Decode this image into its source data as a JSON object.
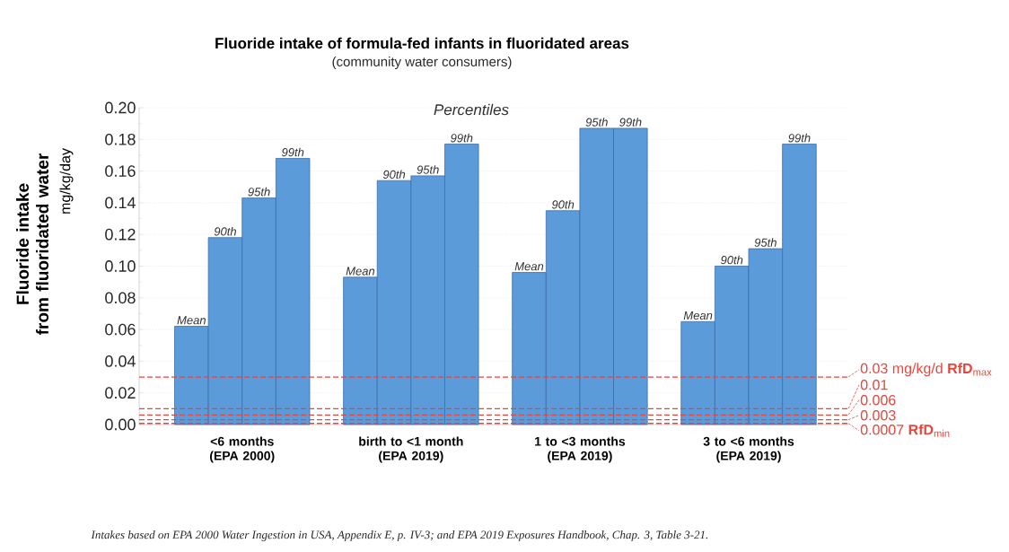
{
  "chart_data": {
    "type": "bar",
    "title": "Fluoride intake of formula-fed infants in fluoridated areas",
    "subtitle": "(community water consumers)",
    "ylabel": "Fluoride intake from fluoridated water",
    "categories": [
      "<6 months (EPA 2000)",
      "birth to <1 month (EPA 2019)",
      "1 to <3 months (EPA 2019)",
      "3 to <6 months (EPA 2019)"
    ],
    "series": [
      {
        "name": "Mean",
        "color": "#5b9bd9",
        "values": [
          0.062,
          0.093,
          0.096,
          0.065
        ]
      },
      {
        "name": "90th",
        "color": "#5b9bd9",
        "values": [
          0.118,
          0.154,
          0.135,
          0.1
        ]
      },
      {
        "name": "95th",
        "color": "#5b9bd9",
        "values": [
          0.143,
          0.157,
          0.187,
          0.111
        ]
      },
      {
        "name": "99th",
        "color": "#5b9bd9",
        "values": [
          0.168,
          0.177,
          0.187,
          0.177
        ]
      }
    ],
    "ylim": [
      0,
      0.2
    ],
    "yticks": [
      {
        "value": 0,
        "label": "0.00"
      },
      {
        "value": 0.02,
        "label": "0.02"
      },
      {
        "value": 0.04,
        "label": "0.04"
      },
      {
        "value": 0.06,
        "label": "0.06"
      },
      {
        "value": 0.08,
        "label": "0.08"
      },
      {
        "value": 0.1,
        "label": "0.10"
      },
      {
        "value": 0.12,
        "label": "0.12"
      },
      {
        "value": 0.14,
        "label": "0.14"
      },
      {
        "value": 0.16,
        "label": "0.16"
      },
      {
        "value": 0.18,
        "label": "0.18"
      },
      {
        "value": 0.2,
        "label": "0.20"
      }
    ],
    "grid": "y",
    "ref_lines": [
      {
        "axis": "y",
        "value": 0.03,
        "label": "0.03 mg/kg/d **RfD**$_{max}$",
        "color": "#e8453c",
        "line_style": "dashed"
      },
      {
        "axis": "y",
        "value": 0.01,
        "label": "0.01",
        "color": "#e8453c",
        "line_style": "dashed"
      },
      {
        "axis": "y",
        "value": 0.006,
        "label": "0.006",
        "color": "#e8453c",
        "line_style": "dashed"
      },
      {
        "axis": "y",
        "value": 0.003,
        "label": "0.003",
        "color": "#e8453c",
        "line_style": "dashed"
      },
      {
        "axis": "y",
        "value": 0.0007,
        "label": "0.0007 **RfD**$_{min}$",
        "color": "#e8453c",
        "line_style": "dashed"
      }
    ],
    "annotations": [
      "mg/kg/day",
      "Percentiles",
      "Intakes based on EPA 2000 Water Ingestion in USA, Appendix E, p. IV-3; and EPA 2019 Exposures Handbook, Chap. 3, Table 3-21."
    ]
  }
}
